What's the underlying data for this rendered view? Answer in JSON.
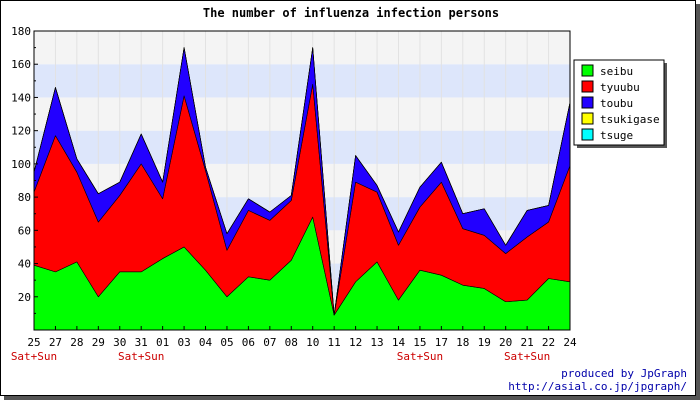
{
  "chart_data": {
    "type": "area",
    "stacked": true,
    "title": "The number of influenza infection persons",
    "xlabel": "",
    "ylabel": "",
    "ylim": [
      0,
      180
    ],
    "yticks": [
      20,
      40,
      60,
      80,
      100,
      120,
      140,
      160,
      180
    ],
    "categories": [
      "25",
      "27",
      "28",
      "29",
      "30",
      "31",
      "01",
      "03",
      "04",
      "05",
      "06",
      "07",
      "08",
      "10",
      "11",
      "12",
      "13",
      "14",
      "15",
      "17",
      "18",
      "19",
      "20",
      "21",
      "22",
      "24"
    ],
    "weekend_label": "Sat+Sun",
    "weekend_marks": [
      "25",
      "31",
      "15",
      "21"
    ],
    "series": [
      {
        "name": "seibu",
        "color": "#00ff00",
        "values": [
          39,
          35,
          41,
          20,
          35,
          35,
          43,
          50,
          36,
          20,
          32,
          30,
          42,
          68,
          9,
          29,
          41,
          18,
          36,
          33,
          27,
          25,
          17,
          18,
          31,
          29
        ]
      },
      {
        "name": "tyuubu",
        "color": "#ff0000",
        "values": [
          44,
          82,
          54,
          45,
          46,
          65,
          36,
          91,
          60,
          28,
          40,
          36,
          36,
          80,
          0,
          60,
          42,
          33,
          38,
          56,
          34,
          32,
          29,
          38,
          34,
          70
        ]
      },
      {
        "name": "toubu",
        "color": "#2200ff",
        "values": [
          12,
          29,
          8,
          17,
          8,
          18,
          10,
          29,
          2,
          10,
          7,
          5,
          3,
          22,
          0,
          16,
          4,
          8,
          12,
          12,
          9,
          16,
          5,
          16,
          10,
          38
        ]
      },
      {
        "name": "tsukigase",
        "color": "#ffff00",
        "values": [
          0,
          0,
          0,
          0,
          0,
          0,
          0,
          0,
          0,
          0,
          0,
          0,
          0,
          0,
          0,
          0,
          0,
          0,
          0,
          0,
          0,
          0,
          0,
          0,
          0,
          0
        ]
      },
      {
        "name": "tsuge",
        "color": "#00ffff",
        "values": [
          0,
          0,
          0,
          0,
          0,
          0,
          0,
          0,
          0,
          0,
          0,
          0,
          0,
          0,
          0,
          0,
          0,
          0,
          0,
          0,
          0,
          0,
          0,
          0,
          0,
          0
        ]
      }
    ],
    "legend_position": "right",
    "grid": true
  },
  "footer": {
    "credit_line1": "produced by JpGraph",
    "credit_line2": "http://asial.co.jp/jpgraph/"
  }
}
